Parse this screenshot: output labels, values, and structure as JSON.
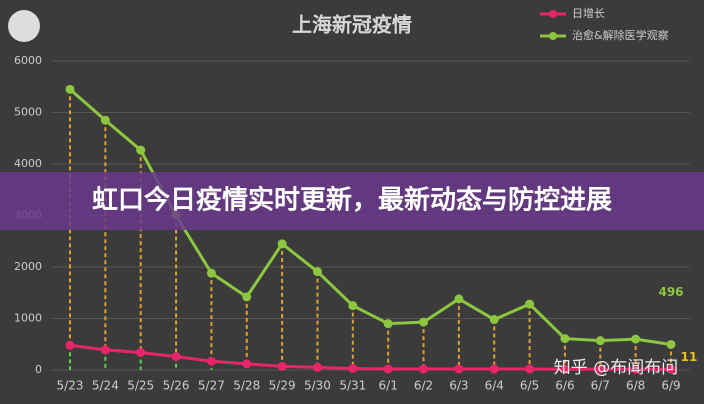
{
  "chart_data": {
    "type": "line",
    "title": "上海新冠疫情",
    "banner": "虹口今日疫情实时更新，最新动态与防控进展",
    "watermark": "知乎 @布闻布问",
    "categories": [
      "5/23",
      "5/24",
      "5/25",
      "5/26",
      "5/27",
      "5/28",
      "5/29",
      "5/30",
      "5/31",
      "6/1",
      "6/2",
      "6/3",
      "6/4",
      "6/5",
      "6/6",
      "6/7",
      "6/8",
      "6/9"
    ],
    "series": [
      {
        "name": "日增长",
        "color": "#e8256a",
        "values": [
          480,
          390,
          340,
          260,
          170,
          120,
          70,
          50,
          30,
          20,
          20,
          20,
          20,
          20,
          15,
          15,
          15,
          11
        ]
      },
      {
        "name": "治愈&解除医学观察",
        "color": "#8dc63f",
        "values": [
          5450,
          4850,
          4270,
          3000,
          1880,
          1420,
          2450,
          1910,
          1250,
          900,
          930,
          1380,
          980,
          1280,
          610,
          570,
          600,
          496
        ]
      }
    ],
    "ylim": [
      0,
      6000
    ],
    "yticks": [
      0,
      1000,
      2000,
      3000,
      4000,
      5000,
      6000
    ],
    "grid": true
  }
}
